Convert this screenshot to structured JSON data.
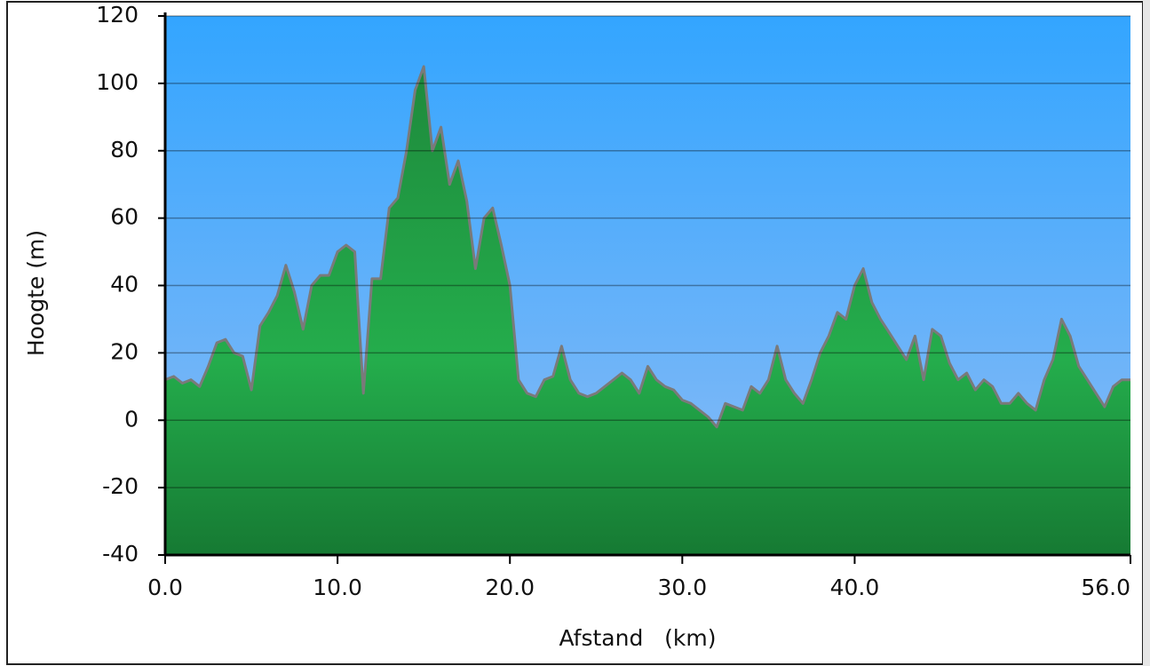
{
  "chart_data": {
    "type": "area",
    "x_label": "Afstand   (km)",
    "y_label": "Hoogte (m)",
    "x": [
      0,
      0.5,
      1,
      1.5,
      2,
      2.5,
      3,
      3.5,
      4,
      4.5,
      5,
      5.5,
      6,
      6.5,
      7,
      7.5,
      8,
      8.5,
      9,
      9.5,
      10,
      10.5,
      11,
      11.5,
      12,
      12.5,
      13,
      13.5,
      14,
      14.5,
      15,
      15.5,
      16,
      16.5,
      17,
      17.5,
      18,
      18.5,
      19,
      19.5,
      20,
      20.5,
      21,
      21.5,
      22,
      22.5,
      23,
      23.5,
      24,
      24.5,
      25,
      25.5,
      26,
      26.5,
      27,
      27.5,
      28,
      28.5,
      29,
      29.5,
      30,
      30.5,
      31,
      31.5,
      32,
      32.5,
      33,
      33.5,
      34,
      34.5,
      35,
      35.5,
      36,
      36.5,
      37,
      37.5,
      38,
      38.5,
      39,
      39.5,
      40,
      40.5,
      41,
      41.5,
      42,
      42.5,
      43,
      43.5,
      44,
      44.5,
      45,
      45.5,
      46,
      46.5,
      47,
      47.5,
      48,
      48.5,
      49,
      49.5,
      50,
      50.5,
      51,
      51.5,
      52,
      52.5,
      53,
      53.5,
      54,
      54.5,
      55,
      55.5,
      56
    ],
    "values": [
      12,
      13,
      11,
      12,
      10,
      16,
      23,
      24,
      20,
      19,
      9,
      28,
      32,
      37,
      46,
      38,
      27,
      40,
      43,
      43,
      50,
      52,
      50,
      8,
      42,
      42,
      63,
      66,
      80,
      98,
      105,
      80,
      87,
      70,
      77,
      65,
      45,
      60,
      63,
      52,
      40,
      12,
      8,
      7,
      12,
      13,
      22,
      12,
      8,
      7,
      8,
      10,
      12,
      14,
      12,
      8,
      16,
      12,
      10,
      9,
      6,
      5,
      3,
      1,
      -2,
      5,
      4,
      3,
      10,
      8,
      12,
      22,
      12,
      8,
      5,
      12,
      20,
      25,
      32,
      30,
      40,
      45,
      35,
      30,
      26,
      22,
      18,
      25,
      12,
      27,
      25,
      17,
      12,
      14,
      9,
      12,
      10,
      5,
      5,
      8,
      5,
      3,
      12,
      18,
      30,
      25,
      16,
      12,
      8,
      4,
      10,
      12,
      12
    ],
    "color": "#22a94a",
    "line_color": "#7a7a7a",
    "background": [
      "#33a5ff",
      "#8ebcf5"
    ],
    "xlim": [
      0,
      56
    ],
    "ylim": [
      -40,
      120
    ],
    "xticks": [
      {
        "value": 0,
        "label": "0.0"
      },
      {
        "value": 10,
        "label": "10.0"
      },
      {
        "value": 20,
        "label": "20.0"
      },
      {
        "value": 30,
        "label": "30.0"
      },
      {
        "value": 40,
        "label": "40.0"
      },
      {
        "value": 56,
        "label": "56.0"
      }
    ],
    "yticks": [
      120,
      100,
      80,
      60,
      40,
      20,
      0,
      -20,
      -40
    ],
    "grid": true
  }
}
